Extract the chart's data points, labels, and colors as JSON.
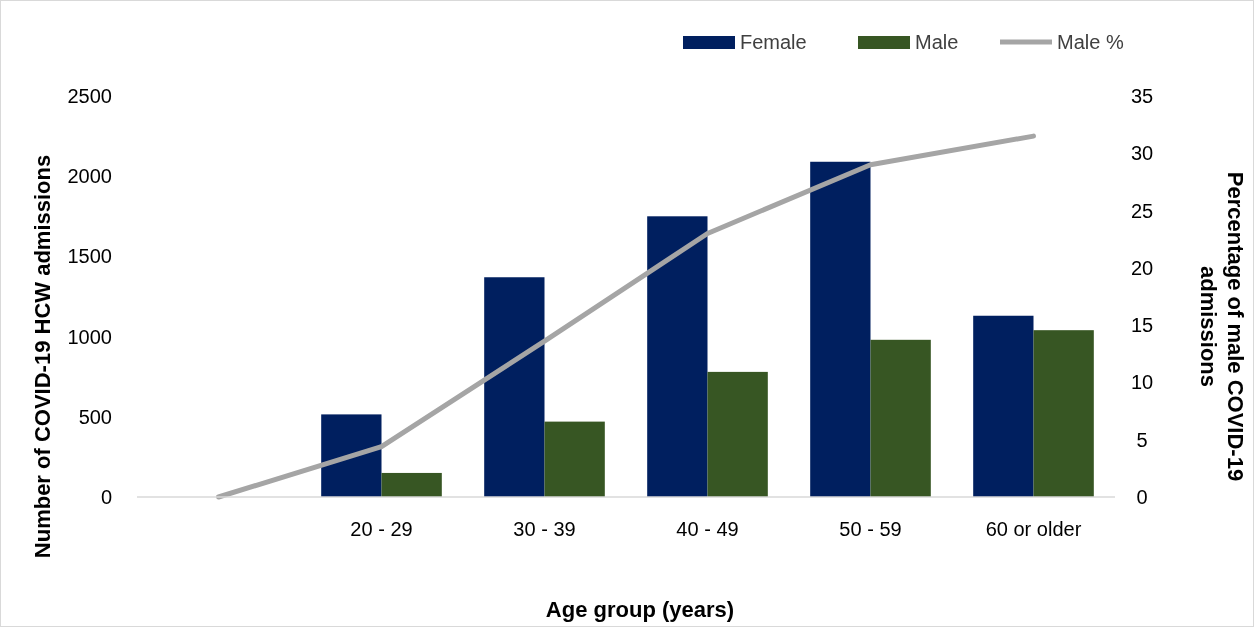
{
  "chart_data": {
    "type": "bar",
    "xlabel": "Age group (years)",
    "ylabel": "Number of COVID-19 HCW admissions",
    "y2label": "Percentage of male COVID-19 admissions",
    "categories": [
      null,
      "20 - 29",
      "30 - 39",
      "40 - 49",
      "50 - 59",
      "60 or older"
    ],
    "series": [
      {
        "name": "Female",
        "color": "#001f5f",
        "values": [
          null,
          515,
          1370,
          1750,
          2090,
          1130
        ]
      },
      {
        "name": "Male",
        "color": "#375623",
        "values": [
          null,
          150,
          470,
          780,
          980,
          1040
        ]
      },
      {
        "name": "Male %",
        "color": "#a5a5a5",
        "type": "line",
        "axis": "y2",
        "values": [
          0,
          4.4,
          13.6,
          23.0,
          29.0,
          31.5
        ]
      }
    ],
    "ylim": [
      0,
      2500
    ],
    "yticks": [
      0,
      500,
      1000,
      1500,
      2000,
      2500
    ],
    "y2lim": [
      0,
      35
    ],
    "y2ticks": [
      0,
      5,
      10,
      15,
      20,
      25,
      30,
      35
    ],
    "grid": false,
    "legend": "top right",
    "marker": "none",
    "line_style": "solid"
  }
}
